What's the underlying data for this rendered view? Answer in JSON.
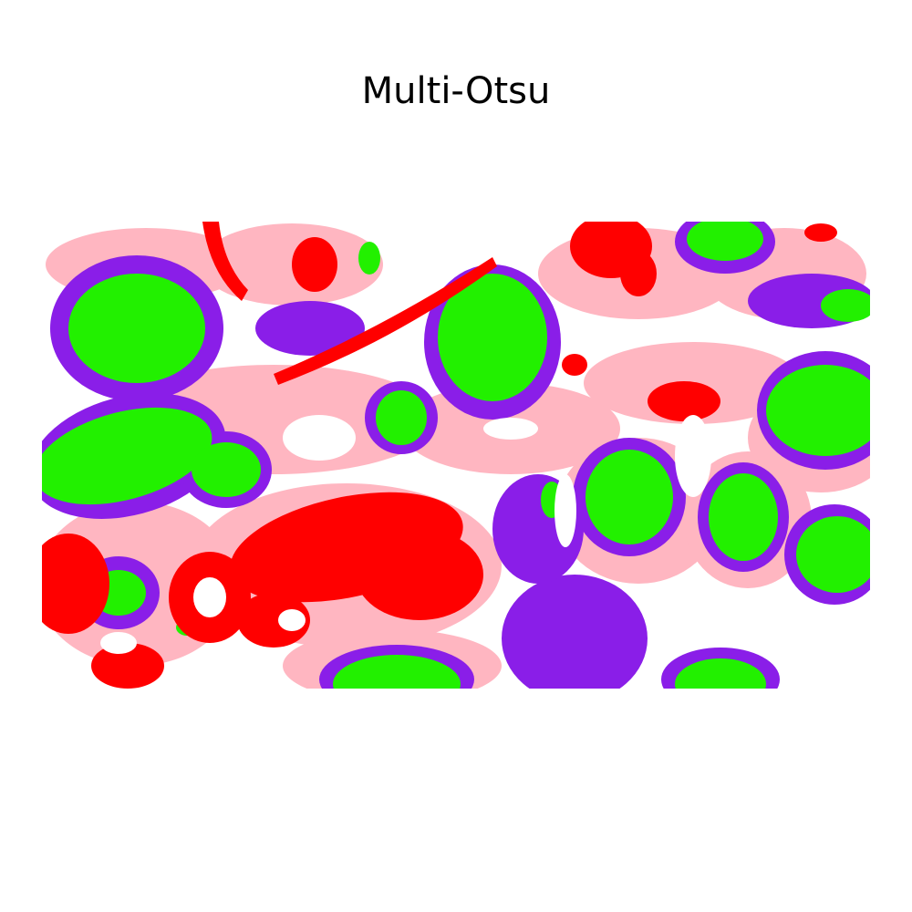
{
  "title": "Multi-Otsu"
}
